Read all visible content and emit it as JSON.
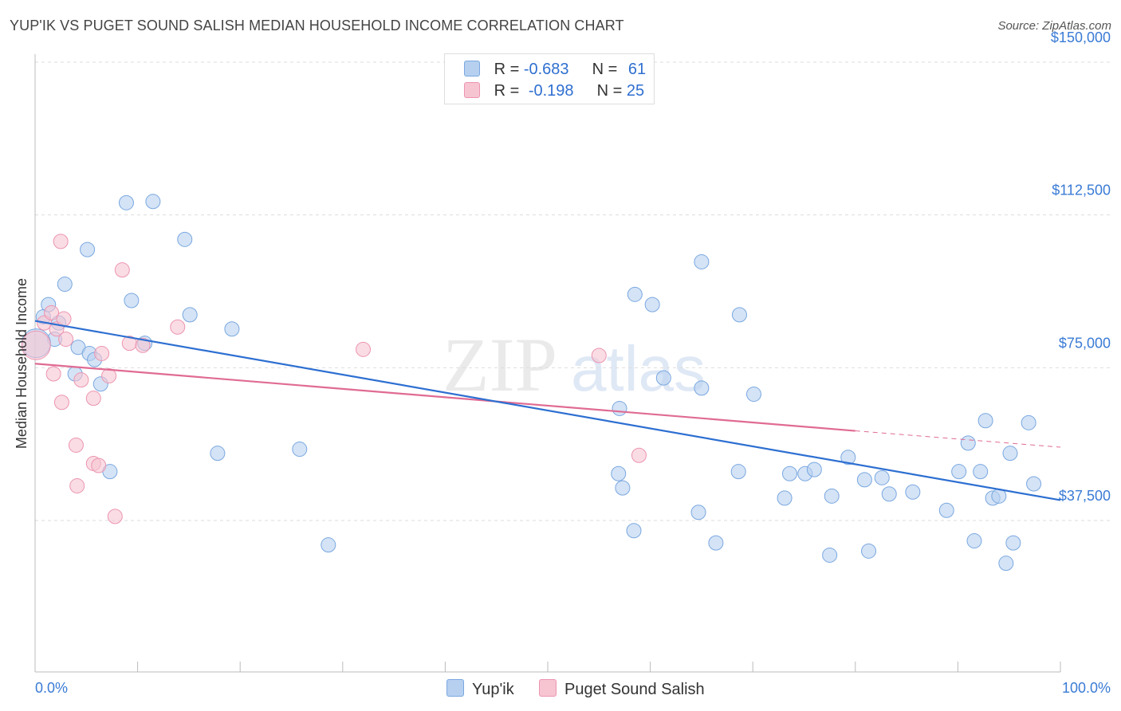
{
  "title": "YUP'IK VS PUGET SOUND SALISH MEDIAN HOUSEHOLD INCOME CORRELATION CHART",
  "source": "Source: ZipAtlas.com",
  "watermark": {
    "zip": "ZIP",
    "atlas": "atlas"
  },
  "colors": {
    "blue_fill": "#b7d0f0",
    "blue_stroke": "#7aa8e0",
    "blue_line": "#2d6fd1",
    "pink_fill": "#f7c4d2",
    "pink_stroke": "#ec95b0",
    "pink_line": "#e06b93",
    "tick_label": "#3a7bd5",
    "grid": "#dddddd"
  },
  "legend": {
    "rows": [
      {
        "r_label": "R =",
        "r_value": "-0.683",
        "n_label": "N =",
        "n_value": "61"
      },
      {
        "r_label": "R =",
        "r_value": "-0.198",
        "n_label": "N =",
        "n_value": "25"
      }
    ]
  },
  "bottom_legend": [
    {
      "label": "Yup'ik"
    },
    {
      "label": "Puget Sound Salish"
    }
  ],
  "chart_data": {
    "type": "scatter",
    "title": "YUP'IK VS PUGET SOUND SALISH MEDIAN HOUSEHOLD INCOME CORRELATION CHART",
    "xlabel": "",
    "ylabel": "Median Household Income",
    "xlim": [
      0,
      100
    ],
    "ylim": [
      15000,
      153000
    ],
    "x_tick_labels": [
      "0.0%",
      "100.0%"
    ],
    "y_ticks": [
      37500,
      75000,
      112500,
      150000
    ],
    "y_tick_labels": [
      "$37,500",
      "$75,000",
      "$112,500",
      "$150,000"
    ],
    "grid": true,
    "legend_position": "top-center",
    "series": [
      {
        "name": "Yup'ik",
        "r": -0.683,
        "n": 61,
        "trend": {
          "x": [
            0,
            100
          ],
          "y": [
            86500,
            42500
          ]
        },
        "points": [
          [
            0.8,
            87500,
            1
          ],
          [
            1.3,
            90500,
            1
          ],
          [
            2.3,
            86000,
            1
          ],
          [
            2.9,
            95500,
            1
          ],
          [
            1.9,
            82000,
            1
          ],
          [
            4.2,
            80000,
            1
          ],
          [
            3.9,
            73500,
            1
          ],
          [
            5.3,
            78500,
            1
          ],
          [
            5.8,
            77000,
            1
          ],
          [
            6.4,
            71000,
            1
          ],
          [
            5.1,
            104000,
            1
          ],
          [
            8.9,
            115500,
            1
          ],
          [
            11.5,
            115800,
            1
          ],
          [
            14.6,
            106500,
            1
          ],
          [
            9.4,
            91500,
            1
          ],
          [
            10.7,
            81000,
            1
          ],
          [
            15.1,
            88000,
            1
          ],
          [
            19.2,
            84500,
            1
          ],
          [
            7.3,
            49500,
            1
          ],
          [
            17.8,
            54000,
            1
          ],
          [
            25.8,
            55000,
            1
          ],
          [
            28.6,
            31500,
            1
          ],
          [
            0.1,
            81000,
            3
          ],
          [
            57.3,
            45500,
            1
          ],
          [
            58.5,
            93000,
            1
          ],
          [
            60.2,
            90500,
            1
          ],
          [
            61.3,
            72500,
            1
          ],
          [
            57.0,
            65000,
            1
          ],
          [
            56.9,
            49000,
            1
          ],
          [
            58.4,
            35000,
            1
          ],
          [
            65.0,
            101000,
            1
          ],
          [
            68.7,
            88000,
            1
          ],
          [
            70.1,
            68500,
            1
          ],
          [
            65.0,
            70000,
            1
          ],
          [
            64.7,
            39500,
            1
          ],
          [
            66.4,
            32000,
            1
          ],
          [
            68.6,
            49500,
            1
          ],
          [
            73.6,
            49000,
            1
          ],
          [
            75.1,
            49000,
            1
          ],
          [
            73.1,
            43000,
            1
          ],
          [
            76.0,
            50000,
            1
          ],
          [
            77.7,
            43500,
            1
          ],
          [
            79.3,
            53000,
            1
          ],
          [
            80.9,
            47500,
            1
          ],
          [
            82.6,
            48000,
            1
          ],
          [
            83.3,
            44000,
            1
          ],
          [
            85.6,
            44500,
            1
          ],
          [
            90.1,
            49500,
            1
          ],
          [
            91.0,
            56500,
            1
          ],
          [
            92.2,
            49500,
            1
          ],
          [
            92.7,
            62000,
            1
          ],
          [
            93.4,
            43000,
            1
          ],
          [
            94.0,
            43500,
            1
          ],
          [
            95.1,
            54000,
            1
          ],
          [
            96.9,
            61500,
            1
          ],
          [
            97.4,
            46500,
            1
          ],
          [
            88.9,
            40000,
            1
          ],
          [
            77.5,
            29000,
            1
          ],
          [
            81.3,
            30000,
            1
          ],
          [
            91.6,
            32500,
            1
          ],
          [
            94.7,
            27000,
            1
          ],
          [
            95.4,
            32000,
            1
          ]
        ]
      },
      {
        "name": "Puget Sound Salish",
        "r": -0.198,
        "n": 25,
        "trend": {
          "x": [
            0,
            80
          ],
          "y": [
            76000,
            59500
          ]
        },
        "trend_dashed": {
          "x": [
            80,
            100
          ],
          "y": [
            59500,
            55500
          ]
        },
        "points": [
          [
            0.1,
            80500,
            3
          ],
          [
            0.9,
            86000,
            1
          ],
          [
            1.6,
            88500,
            1
          ],
          [
            2.1,
            84500,
            1
          ],
          [
            1.8,
            73500,
            1
          ],
          [
            2.8,
            87000,
            1
          ],
          [
            3.0,
            82000,
            1
          ],
          [
            2.6,
            66500,
            1
          ],
          [
            4.5,
            72000,
            1
          ],
          [
            5.7,
            67500,
            1
          ],
          [
            6.5,
            78500,
            1
          ],
          [
            7.2,
            73000,
            1
          ],
          [
            2.5,
            106000,
            1
          ],
          [
            8.5,
            99000,
            1
          ],
          [
            13.9,
            85000,
            1
          ],
          [
            9.2,
            81000,
            1
          ],
          [
            10.5,
            80500,
            1
          ],
          [
            4.0,
            56000,
            1
          ],
          [
            5.7,
            51500,
            1
          ],
          [
            6.2,
            51000,
            1
          ],
          [
            4.1,
            46000,
            1
          ],
          [
            7.8,
            38500,
            1
          ],
          [
            32.0,
            79500,
            1
          ],
          [
            58.9,
            53500,
            1
          ],
          [
            55.0,
            78000,
            1
          ]
        ]
      }
    ]
  }
}
